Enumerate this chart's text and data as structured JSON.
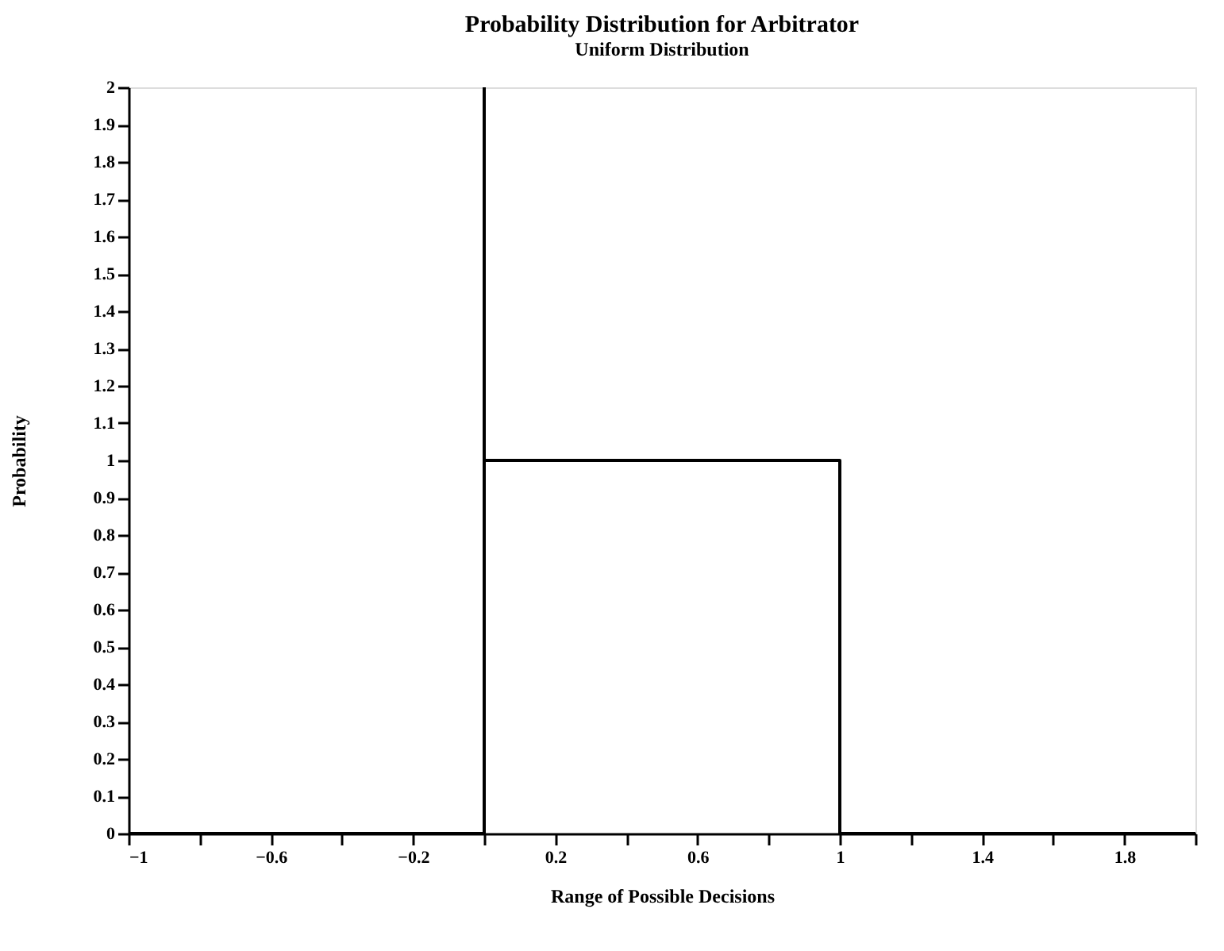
{
  "chart_data": {
    "type": "line",
    "title": "Probability Distribution for Arbitrator",
    "subtitle": "Uniform Distribution",
    "xlabel": "Range of Possible Decisions",
    "ylabel": "Probability",
    "x": [
      -1,
      0,
      0,
      1,
      1,
      2
    ],
    "series": [
      {
        "color": "#000000",
        "values": [
          0,
          0,
          1,
          1,
          0,
          0
        ]
      }
    ],
    "xlim": [
      -1,
      2
    ],
    "xticks": [
      -1,
      {
        "value": -0.8,
        "label": null
      },
      -0.6,
      {
        "value": -0.4,
        "label": null
      },
      -0.2,
      {
        "value": 0,
        "label": null
      },
      0.2,
      {
        "value": 0.4,
        "label": null
      },
      0.6,
      {
        "value": 0.8,
        "label": null
      },
      1,
      {
        "value": 1.2,
        "label": null
      },
      1.4,
      {
        "value": 1.6,
        "label": null
      },
      1.8,
      {
        "value": 2,
        "label": null
      }
    ],
    "ylim": [
      0,
      2
    ],
    "yticks": [
      0,
      0.1,
      0.2,
      0.3,
      0.4,
      0.5,
      0.6,
      0.7,
      0.8,
      0.9,
      1,
      1.1,
      1.2,
      1.3,
      1.4,
      1.5,
      1.6,
      1.7,
      1.8,
      1.9,
      2
    ],
    "ref_lines": [
      {
        "axis": "x",
        "value": 0,
        "color": "#000000",
        "line_style": "solid"
      }
    ],
    "grid": false,
    "marker": "none",
    "line_style": "solid"
  }
}
